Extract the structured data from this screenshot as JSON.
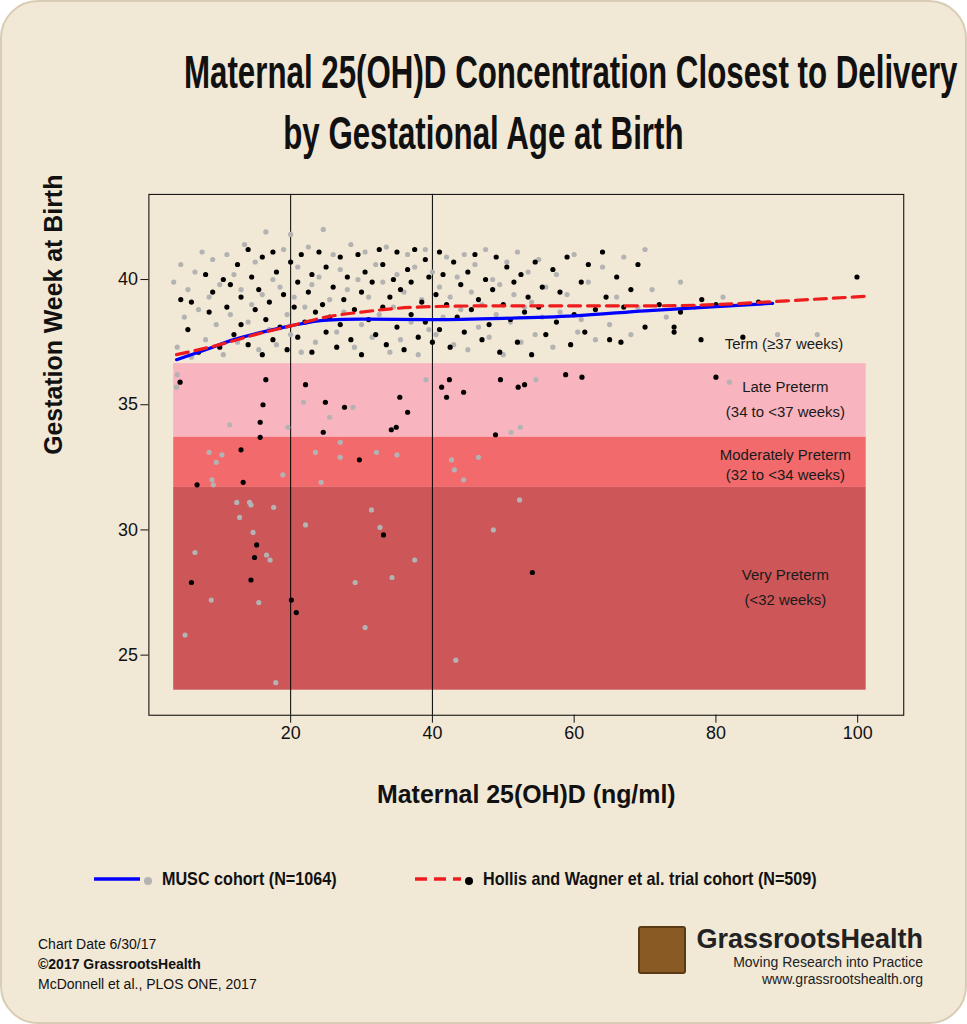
{
  "chart_data": {
    "type": "scatter",
    "title": [
      "Maternal 25(OH)D Concentration Closest to Delivery",
      "by Gestational Age at Birth"
    ],
    "x_label": "Maternal 25(OH)D (ng/ml)",
    "y_label": "Gestation Week at Birth",
    "xlim": [
      0,
      106.5
    ],
    "ylim": [
      22.6,
      43.4
    ],
    "xticks": [
      20,
      40,
      60,
      80,
      100
    ],
    "yticks": [
      25,
      30,
      35,
      40
    ],
    "grid": false,
    "vlines": [
      20,
      40
    ],
    "region_x": [
      3.5,
      101.2
    ],
    "regions": [
      {
        "y": [
          33.7,
          36.64
        ],
        "color": "#f8b4bf"
      },
      {
        "y": [
          31.7,
          33.7
        ],
        "color": "#f26a6c"
      },
      {
        "y": [
          23.6,
          31.7
        ],
        "color": "#cc5658"
      }
    ],
    "annotations": [
      {
        "text": "Term (≥37 weeks)",
        "x": 89.6,
        "y": 37.4
      },
      {
        "text": "Late Preterm",
        "x": 89.8,
        "y": 35.7
      },
      {
        "text": "(34 to <37 weeks)",
        "x": 89.8,
        "y": 34.7
      },
      {
        "text": "Moderately Preterm",
        "x": 89.8,
        "y": 33.0
      },
      {
        "text": "(32 to <34 weeks)",
        "x": 89.8,
        "y": 32.2
      },
      {
        "text": "Very Preterm",
        "x": 89.8,
        "y": 28.2
      },
      {
        "text": "(<32 weeks)",
        "x": 89.8,
        "y": 27.2
      }
    ],
    "legend": "bottom",
    "series": [
      {
        "name": "MUSC cohort (N=1064)",
        "type": "scatter",
        "color": "#b3b3b3",
        "marker": "circle",
        "x": [
          4.0,
          3.9,
          5.1,
          6.5,
          8.8,
          8.5,
          8.9,
          9.1,
          9.5,
          10.3,
          11.4,
          12.4,
          12.8,
          14.2,
          14.7,
          14.4,
          15.5,
          16.6,
          17.1,
          17.6,
          17.9,
          18.9,
          19.6,
          21.8,
          22.1,
          23.5,
          24.3,
          25.5,
          27.0,
          27.0,
          28.8,
          29.1,
          30.5,
          31.4,
          32.1,
          32.6,
          34.3,
          35.0,
          37.5,
          39.1,
          42.7,
          43.1,
          43.3,
          44.4,
          46.5,
          48.6,
          51.1,
          52.3,
          52.4,
          54.6,
          81.9,
          88.7,
          94.3,
          3.5,
          4,
          4.5,
          5,
          5.5,
          6,
          6.5,
          7,
          7.5,
          8,
          8.5,
          9,
          9.5,
          10,
          10.5,
          11,
          11.5,
          12,
          12.5,
          13,
          13.5,
          14,
          14.5,
          15,
          15.5,
          16,
          16.5,
          17,
          17.5,
          18,
          18.5,
          19,
          19.5,
          20,
          20,
          20.5,
          21,
          21.5,
          22,
          22.5,
          23,
          23.5,
          24,
          24.6,
          25,
          25.5,
          26,
          26.5,
          27,
          27.5,
          28,
          28.5,
          29,
          29.5,
          30,
          30.5,
          31,
          31.5,
          32,
          32.5,
          33,
          33.5,
          34,
          34.5,
          35,
          35.5,
          36,
          36.5,
          37,
          37.5,
          38,
          38.5,
          39,
          39.5,
          40,
          40.5,
          41,
          41.5,
          42,
          42.5,
          43,
          43.5,
          44,
          44.5,
          45,
          45.5,
          46,
          46.5,
          47,
          47.5,
          48,
          48.5,
          49,
          49.5,
          50,
          50.5,
          51,
          51.5,
          52,
          52.5,
          53,
          53.5,
          54,
          54.5,
          55,
          55.5,
          56,
          57,
          57.5,
          58,
          59,
          60,
          60.5,
          61,
          62,
          63,
          64,
          65,
          66,
          67,
          68,
          69,
          70,
          71,
          73,
          75,
          77,
          81
        ],
        "values": [
          36.2,
          35.7,
          25.8,
          29.1,
          27.2,
          33.1,
          32.0,
          31.8,
          32.7,
          33.0,
          34.2,
          31.1,
          30.5,
          31.1,
          29.9,
          31.0,
          27.1,
          29.0,
          28.8,
          30.9,
          23.9,
          32.2,
          34.1,
          35.1,
          30.2,
          33.1,
          31.9,
          34.5,
          33.5,
          32.9,
          34.9,
          27.9,
          26.1,
          30.8,
          33.1,
          30.1,
          28.1,
          33.0,
          28.8,
          36.0,
          32.8,
          32.4,
          24.8,
          32.0,
          32.9,
          30.0,
          33.9,
          31.2,
          34.1,
          36.0,
          35.9,
          37.8,
          37.8,
          39.9,
          37.3,
          40.6,
          38.5,
          39.6,
          36.9,
          40.3,
          38.8,
          41.1,
          37.6,
          39.3,
          40.8,
          38.2,
          39.8,
          37.0,
          41.0,
          38.6,
          40.2,
          37.5,
          39.6,
          41.4,
          38.3,
          39.0,
          40.7,
          37.2,
          39.4,
          41.9,
          38.0,
          40.0,
          37.4,
          39.7,
          41.2,
          38.6,
          41.8,
          37.8,
          39.3,
          40.5,
          37.1,
          38.9,
          41.3,
          39.8,
          37.5,
          40.1,
          42.0,
          38.4,
          39.2,
          41.0,
          37.9,
          40.4,
          38.7,
          39.6,
          41.4,
          37.3,
          40.0,
          38.2,
          41.1,
          39.3,
          37.7,
          40.6,
          38.6,
          39.9,
          41.3,
          37.1,
          38.9,
          40.2,
          37.6,
          39.5,
          41.0,
          38.3,
          40.5,
          37.0,
          39.2,
          41.2,
          38.0,
          40.3,
          37.8,
          39.7,
          38.5,
          40.9,
          39.3,
          37.4,
          40.1,
          38.8,
          41.0,
          37.2,
          39.5,
          40.6,
          38.1,
          39.0,
          41.2,
          37.7,
          40.0,
          38.6,
          39.8,
          37.0,
          40.7,
          38.3,
          39.4,
          41.1,
          37.5,
          38.9,
          40.3,
          39.1,
          37.8,
          40.8,
          38.5,
          39.7,
          37.3,
          40.2,
          38.7,
          39.4,
          41.0,
          37.9,
          38.4,
          39.9,
          37.6,
          40.5,
          38.2,
          39.3,
          40.9,
          37.8,
          38.9,
          41.2,
          39.6,
          38.5,
          39.9,
          38.9,
          39.3
        ],
        "fit": {
          "color": "#0000ff",
          "line_style": "solid",
          "x": [
            3.9,
            8,
            12,
            16,
            20,
            25,
            30,
            40,
            50,
            60,
            70,
            80,
            88
          ],
          "values": [
            36.8,
            37.2,
            37.6,
            37.9,
            38.15,
            38.38,
            38.42,
            38.4,
            38.45,
            38.55,
            38.75,
            38.92,
            39.05
          ]
        }
      },
      {
        "name": "Hollis and Wagner et al. trial cohort (N=509)",
        "type": "scatter",
        "color": "#000000",
        "marker": "circle",
        "x": [
          4.4,
          6.0,
          6.8,
          13.0,
          13.3,
          14.4,
          14.9,
          15.2,
          15.7,
          15.7,
          16.1,
          16.5,
          20.1,
          20.8,
          22.1,
          24.6,
          24.9,
          27.6,
          29.7,
          33.1,
          34.2,
          34.9,
          35.4,
          36.5,
          41.3,
          42.0,
          42.4,
          44.4,
          48.9,
          49.6,
          52.1,
          53.0,
          54.1,
          58.8,
          61.1,
          80.0,
          99.9,
          83.8,
          77.9,
          74.1,
          74.1,
          66.6,
          4.5,
          5.5,
          6,
          7,
          8,
          8.5,
          9,
          10,
          10.5,
          11,
          11.5,
          12,
          12.5,
          13,
          13,
          14,
          14,
          14.5,
          15,
          15.5,
          16,
          16,
          16.5,
          17,
          17.5,
          17.5,
          18,
          18.5,
          19,
          19.5,
          20,
          20.5,
          21,
          21,
          21.5,
          22,
          22.5,
          23,
          23,
          23.5,
          24,
          24.5,
          25,
          25,
          25.5,
          26,
          26.5,
          27,
          27,
          27.5,
          28,
          28.5,
          29,
          29.5,
          30,
          30,
          30.5,
          31,
          31.5,
          32,
          32.5,
          33,
          33,
          33.5,
          34,
          34.5,
          35,
          35,
          35.5,
          36,
          36.5,
          37,
          37,
          37.5,
          38,
          38.5,
          39,
          39,
          39.5,
          40,
          40.5,
          41,
          41,
          41.5,
          42,
          42.5,
          43,
          43.5,
          44,
          44.5,
          45,
          45.5,
          46,
          46.5,
          47,
          47.5,
          48,
          48.5,
          49,
          49.5,
          50,
          50.5,
          51,
          51.5,
          52,
          52.5,
          53,
          53.5,
          54,
          54.5,
          55,
          55.5,
          56,
          57,
          57.5,
          58,
          59,
          59.5,
          60,
          61,
          61.5,
          62,
          63,
          64,
          64.5,
          65,
          66,
          67,
          68,
          69,
          70,
          72,
          75,
          78,
          80,
          86
        ],
        "values": [
          35.9,
          27.9,
          31.8,
          33.2,
          31.9,
          28.0,
          28.9,
          29.4,
          33.7,
          34.3,
          35.0,
          36.0,
          27.2,
          26.7,
          35.8,
          33.9,
          35.1,
          34.9,
          32.8,
          29.8,
          34.0,
          34.1,
          35.3,
          34.7,
          35.7,
          35.3,
          36.0,
          35.5,
          33.8,
          36.0,
          35.7,
          35.8,
          28.3,
          36.2,
          36.1,
          36.1,
          40.1,
          37.7,
          37.6,
          37.9,
          38.1,
          37.5,
          39.2,
          38.0,
          39.1,
          37.1,
          40.2,
          38.7,
          39.5,
          37.3,
          40.0,
          38.9,
          39.8,
          37.8,
          40.6,
          38.2,
          39.3,
          41.2,
          37.4,
          40.1,
          38.8,
          39.6,
          37.0,
          40.9,
          38.4,
          39.1,
          41.1,
          37.6,
          40.3,
          38.1,
          39.4,
          37.2,
          40.7,
          38.9,
          39.9,
          37.7,
          41.0,
          38.3,
          39.5,
          40.2,
          37.1,
          38.7,
          41.1,
          39.0,
          37.9,
          40.5,
          38.5,
          39.7,
          37.3,
          40.9,
          38.2,
          39.2,
          40.1,
          37.6,
          38.8,
          41.0,
          39.5,
          37.0,
          40.3,
          38.4,
          39.9,
          37.8,
          41.2,
          38.9,
          40.6,
          37.4,
          39.3,
          40.0,
          38.1,
          41.1,
          39.6,
          37.2,
          40.4,
          38.6,
          39.9,
          41.2,
          37.7,
          39.1,
          40.8,
          38.3,
          40.1,
          37.5,
          39.4,
          41.1,
          38.0,
          40.2,
          39.0,
          37.3,
          40.7,
          38.5,
          39.8,
          37.9,
          40.3,
          38.8,
          41.0,
          39.2,
          37.6,
          40.0,
          38.2,
          39.6,
          40.9,
          37.1,
          39.0,
          40.5,
          38.4,
          39.9,
          37.5,
          40.2,
          38.7,
          39.3,
          37.0,
          40.7,
          38.9,
          39.7,
          37.8,
          40.4,
          38.3,
          39.5,
          40.9,
          37.4,
          38.6,
          39.9,
          37.9,
          40.6,
          38.8,
          41.1,
          39.3,
          37.6,
          40.1,
          38.9,
          39.6,
          40.6,
          38.1,
          39.0,
          38.7,
          39.2,
          39.0,
          39.1
        ],
        "fit": {
          "color": "#ee1c1c",
          "line_style": "dashed",
          "x": [
            3.9,
            10,
            15,
            20,
            25,
            30,
            35,
            40,
            50,
            60,
            70,
            80,
            90,
            101.2
          ],
          "values": [
            37.0,
            37.4,
            37.8,
            38.15,
            38.5,
            38.7,
            38.85,
            38.92,
            38.95,
            38.95,
            38.95,
            39.0,
            39.15,
            39.33
          ]
        }
      }
    ],
    "footer": {
      "left": [
        "Chart Date 6/30/17",
        "©2017 GrassrootsHealth",
        "McDonnell et al., PLOS ONE, 2017"
      ],
      "right": [
        "GrassrootsHealth",
        "Moving Research into Practice",
        "www.grassrootshealth.org"
      ]
    }
  }
}
